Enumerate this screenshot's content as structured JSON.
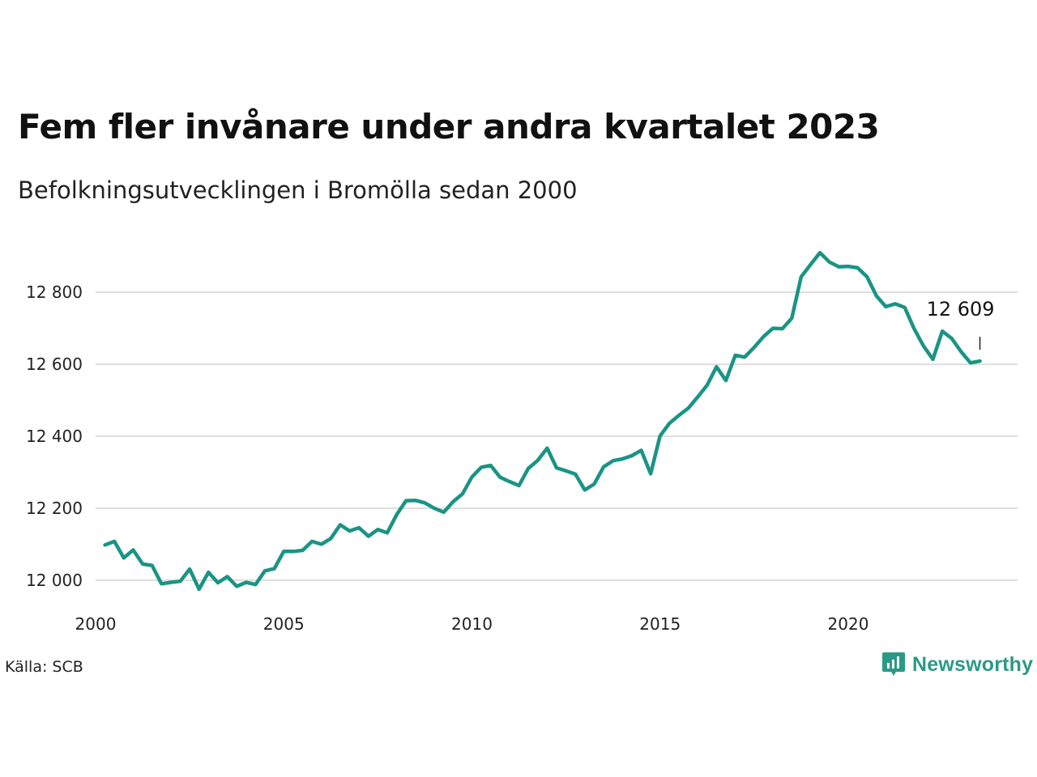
{
  "header": {
    "title": "Fem fler invånare under andra kvartalet 2023",
    "subtitle": "Befolkningsutvecklingen i Bromölla sedan 2000"
  },
  "footer": {
    "source": "Källa: SCB",
    "brand": "Newsworthy",
    "brand_icon": "newsworthy-logo-icon",
    "brand_color": "#2a9a87"
  },
  "chart_data": {
    "type": "line",
    "title": "Fem fler invånare under andra kvartalet 2023",
    "subtitle": "Befolkningsutvecklingen i Bromölla sedan 2000",
    "xlabel": "",
    "ylabel": "",
    "xlim": [
      2000,
      2024.5
    ],
    "ylim": [
      11930,
      12960
    ],
    "x_ticks": [
      2000,
      2005,
      2010,
      2015,
      2020
    ],
    "x_tick_labels": [
      "2000",
      "2005",
      "2010",
      "2015",
      "2020"
    ],
    "y_ticks": [
      12000,
      12200,
      12400,
      12600,
      12800
    ],
    "y_tick_labels": [
      "12 000",
      "12 200",
      "12 400",
      "12 600",
      "12 800"
    ],
    "grid": "horizontal",
    "line_color": "#1a9484",
    "series": [
      {
        "name": "",
        "x": [
          2000.25,
          2000.5,
          2000.75,
          2001.0,
          2001.25,
          2001.5,
          2001.75,
          2002.0,
          2002.25,
          2002.5,
          2002.75,
          2003.0,
          2003.25,
          2003.5,
          2003.75,
          2004.0,
          2004.25,
          2004.5,
          2004.75,
          2005.0,
          2005.25,
          2005.5,
          2005.75,
          2006.0,
          2006.25,
          2006.5,
          2006.75,
          2007.0,
          2007.25,
          2007.5,
          2007.75,
          2008.0,
          2008.25,
          2008.5,
          2008.75,
          2009.0,
          2009.25,
          2009.5,
          2009.75,
          2010.0,
          2010.25,
          2010.5,
          2010.75,
          2011.0,
          2011.25,
          2011.5,
          2011.75,
          2012.0,
          2012.25,
          2012.5,
          2012.75,
          2013.0,
          2013.25,
          2013.5,
          2013.75,
          2014.0,
          2014.25,
          2014.5,
          2014.75,
          2015.0,
          2015.25,
          2015.5,
          2015.75,
          2016.0,
          2016.25,
          2016.5,
          2016.75,
          2017.0,
          2017.25,
          2017.5,
          2017.75,
          2018.0,
          2018.25,
          2018.5,
          2018.75,
          2019.0,
          2019.25,
          2019.5,
          2019.75,
          2020.0,
          2020.25,
          2020.5,
          2020.75,
          2021.0,
          2021.25,
          2021.5,
          2021.75,
          2022.0,
          2022.25,
          2022.5,
          2022.75,
          2023.0,
          2023.25,
          2023.5
        ],
        "values": [
          12098,
          12108,
          12062,
          12084,
          12045,
          12041,
          11990,
          11994,
          11997,
          12031,
          11975,
          12022,
          11993,
          12010,
          11983,
          11994,
          11988,
          12026,
          12032,
          12080,
          12080,
          12083,
          12108,
          12100,
          12116,
          12154,
          12137,
          12146,
          12122,
          12141,
          12132,
          12182,
          12221,
          12222,
          12215,
          12200,
          12189,
          12218,
          12240,
          12287,
          12314,
          12319,
          12286,
          12274,
          12263,
          12311,
          12333,
          12367,
          12312,
          12304,
          12295,
          12251,
          12267,
          12315,
          12332,
          12337,
          12346,
          12361,
          12296,
          12401,
          12436,
          12458,
          12478,
          12509,
          12542,
          12593,
          12555,
          12625,
          12620,
          12647,
          12677,
          12700,
          12699,
          12728,
          12843,
          12877,
          12910,
          12884,
          12871,
          12872,
          12868,
          12843,
          12790,
          12760,
          12768,
          12758,
          12699,
          12651,
          12614,
          12692,
          12672,
          12635,
          12604,
          12609
        ]
      }
    ],
    "annotations": [
      {
        "x": 2023.5,
        "y": 12609,
        "text": "12 609"
      }
    ]
  }
}
